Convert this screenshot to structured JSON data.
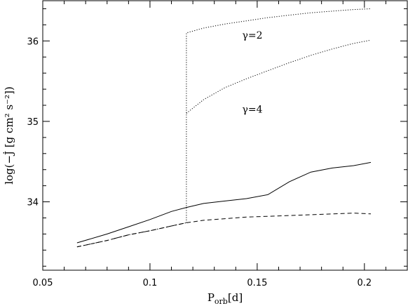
{
  "chart_data": {
    "type": "line",
    "title": "",
    "xlabel": {
      "main": "P",
      "sub": "orb",
      "unit": "[d]"
    },
    "ylabel": {
      "text": "log(−J̇ [g cm² s⁻²])"
    },
    "xlim": [
      0.05,
      0.22
    ],
    "ylim": [
      33.15,
      36.5
    ],
    "xticks": [
      0.05,
      0.1,
      0.15,
      0.2
    ],
    "xtick_labels": [
      "0.05",
      "0.1",
      "0.15",
      "0.2"
    ],
    "yticks": [
      34,
      35,
      36
    ],
    "ytick_labels": [
      "34",
      "35",
      "36"
    ],
    "grid": false,
    "annotations": [
      {
        "text": "γ=2",
        "x": 0.143,
        "y": 36.03
      },
      {
        "text": "γ=4",
        "x": 0.143,
        "y": 35.11
      }
    ],
    "series": [
      {
        "style": "solid",
        "x": [
          0.066,
          0.08,
          0.09,
          0.1,
          0.11,
          0.117,
          0.125,
          0.135,
          0.145,
          0.155,
          0.165,
          0.175,
          0.185,
          0.195,
          0.203
        ],
        "y": [
          33.49,
          33.6,
          33.69,
          33.78,
          33.88,
          33.93,
          33.98,
          34.01,
          34.04,
          34.09,
          34.25,
          34.37,
          34.42,
          34.45,
          34.49
        ]
      },
      {
        "style": "dashed",
        "x": [
          0.066,
          0.08,
          0.09,
          0.1,
          0.11,
          0.117,
          0.125,
          0.135,
          0.145,
          0.155,
          0.165,
          0.175,
          0.185,
          0.195,
          0.203
        ],
        "y": [
          33.44,
          33.52,
          33.59,
          33.64,
          33.7,
          33.74,
          33.77,
          33.79,
          33.81,
          33.82,
          33.83,
          33.84,
          33.85,
          33.86,
          33.85
        ]
      },
      {
        "style": "dotted",
        "label": "γ=2",
        "x": [
          0.117,
          0.117,
          0.125,
          0.135,
          0.145,
          0.155,
          0.165,
          0.175,
          0.185,
          0.195,
          0.203
        ],
        "y": [
          33.74,
          36.1,
          36.16,
          36.21,
          36.25,
          36.29,
          36.32,
          36.35,
          36.37,
          36.39,
          36.4
        ]
      },
      {
        "style": "dotted",
        "label": "γ=4",
        "x": [
          0.117,
          0.125,
          0.135,
          0.145,
          0.155,
          0.165,
          0.175,
          0.185,
          0.195,
          0.203
        ],
        "y": [
          35.1,
          35.27,
          35.42,
          35.53,
          35.63,
          35.73,
          35.82,
          35.9,
          35.97,
          36.01
        ]
      },
      {
        "style": "dashdot",
        "x": [
          0.066,
          0.08,
          0.09,
          0.1,
          0.11,
          0.117
        ],
        "y": [
          33.44,
          33.52,
          33.59,
          33.64,
          33.7,
          33.74
        ]
      }
    ]
  }
}
